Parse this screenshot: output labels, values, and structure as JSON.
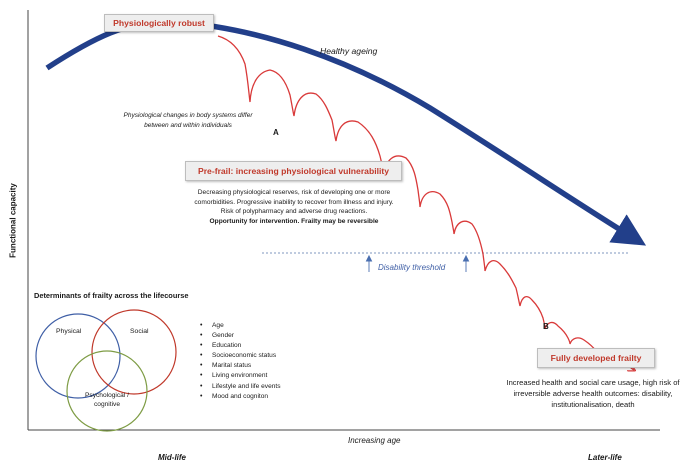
{
  "boxes": {
    "robust": "Physiologically robust",
    "prefrail": "Pre-frail: increasing physiological vulnerability",
    "frailty": "Fully developed frailty"
  },
  "labels": {
    "healthy_ageing": "Healthy ageing",
    "physio_changes": "Physiological changes in body systems differ between and within individuals",
    "point_a": "A",
    "point_b": "B",
    "disability_threshold": "Disability threshold",
    "y_axis": "Functional capacity",
    "x_axis": "Increasing age",
    "mid_life": "Mid-life",
    "later_life": "Later-life"
  },
  "prefrail_text": {
    "description": "Decreasing physiological reserves, risk of developing one or more comorbidities. Progressive inability to recover from illness and injury. Risk of polypharmacy and adverse drug reactions.",
    "emphasis": "Opportunity for intervention. Frailty may be reversible"
  },
  "frailty_text": "Increased health and social care usage, high risk of irreversible adverse health outcomes: disability, institutionalisation, death",
  "determinants": {
    "title": "Determinants of frailty across the lifecourse",
    "circles": {
      "physical": "Physical",
      "social": "Social",
      "psychological": "Psychological / cognitive"
    },
    "factors": [
      "Age",
      "Gender",
      "Education",
      "Socioeconomic status",
      "Marital status",
      "Living environment",
      "Lifestyle and life events",
      "Mood and cogniton"
    ]
  },
  "colors": {
    "healthy_arrow": "#223f8a",
    "frail_line": "#d93a3a",
    "box_text": "#c0392b",
    "threshold": "#7f97bf",
    "circle_physical": "#3f5fa6",
    "circle_social": "#c0392b",
    "circle_psych": "#7e9c45"
  }
}
